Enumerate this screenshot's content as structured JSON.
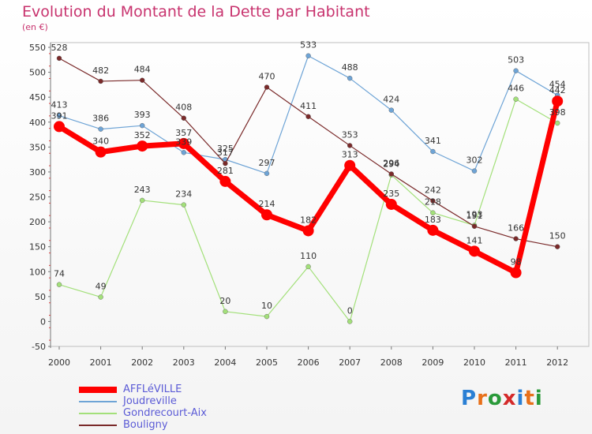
{
  "title": "Evolution du Montant de la Dette par Habitant",
  "subtitle": "(en €)",
  "logo": {
    "text": "Proxiti",
    "letters": [
      {
        "ch": "P",
        "color": "#2a7fd4"
      },
      {
        "ch": "r",
        "color": "#e8701a"
      },
      {
        "ch": "o",
        "color": "#2a9a3a"
      },
      {
        "ch": "x",
        "color": "#d42a2a"
      },
      {
        "ch": "i",
        "color": "#2a7fd4"
      },
      {
        "ch": "t",
        "color": "#e8701a"
      },
      {
        "ch": "i",
        "color": "#2a9a3a"
      }
    ]
  },
  "chart_data": {
    "type": "line",
    "title": "Evolution du Montant de la Dette par Habitant",
    "subtitle": "(en €)",
    "x": [
      "2000",
      "2001",
      "2002",
      "2003",
      "2004",
      "2005",
      "2006",
      "2007",
      "2008",
      "2009",
      "2010",
      "2011",
      "2012"
    ],
    "ylim": [
      -50,
      550
    ],
    "yticks": [
      -50,
      0,
      50,
      100,
      150,
      200,
      250,
      300,
      350,
      400,
      450,
      500,
      550
    ],
    "grid": false,
    "legend_position": "bottom-left",
    "series": [
      {
        "name": "AFFLéVILLE",
        "color": "#ff0000",
        "line_width": 7,
        "marker_radius": 7,
        "values": [
          391,
          340,
          352,
          357,
          281,
          214,
          182,
          313,
          235,
          183,
          141,
          98,
          442
        ],
        "labels": [
          "391",
          "340",
          "352",
          "357",
          "281",
          "214",
          "182",
          "313",
          "235",
          "183",
          "141",
          "98",
          "442"
        ]
      },
      {
        "name": "Joudreville",
        "color": "#6ea4d6",
        "line_width": 1.2,
        "marker_radius": 3,
        "values": [
          413,
          386,
          393,
          339,
          325,
          297,
          533,
          488,
          424,
          341,
          302,
          503,
          454
        ],
        "labels": [
          "413",
          "386",
          "393",
          "339",
          "325",
          "297",
          "533",
          "488",
          "424",
          "341",
          "302",
          "503",
          "454"
        ]
      },
      {
        "name": "Gondrecourt-Aix",
        "color": "#a3e07a",
        "line_width": 1.2,
        "marker_radius": 3,
        "values": [
          74,
          49,
          243,
          234,
          20,
          10,
          110,
          0,
          294,
          218,
          193,
          446,
          398
        ],
        "labels": [
          "74",
          "49",
          "243",
          "234",
          "20",
          "10",
          "110",
          "0",
          "294",
          "218",
          "193",
          "446",
          "398"
        ]
      },
      {
        "name": "Bouligny",
        "color": "#7a2a2a",
        "line_width": 1.2,
        "marker_radius": 3,
        "values": [
          528,
          482,
          484,
          408,
          317,
          470,
          411,
          353,
          296,
          242,
          191,
          166,
          150
        ],
        "labels": [
          "528",
          "482",
          "484",
          "408",
          "317",
          "470",
          "411",
          "353",
          "296",
          "242",
          "191",
          "166",
          "150"
        ]
      }
    ]
  }
}
